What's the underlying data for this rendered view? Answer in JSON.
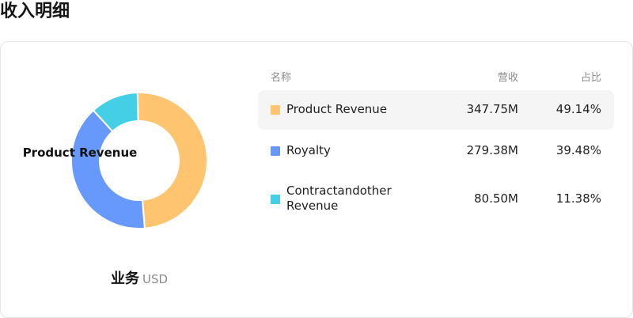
{
  "page": {
    "title": "收入明细"
  },
  "donut": {
    "center_label": "Product Revenue",
    "segment_colors": [
      "#fec46f",
      "#6699fb",
      "#45cfe6"
    ]
  },
  "chart_data": {
    "type": "pie",
    "title": "",
    "categories": [
      "Product Revenue",
      "Royalty",
      "Contractandother Revenue"
    ],
    "values": [
      347.75,
      279.38,
      80.5
    ],
    "percentages": [
      49.14,
      39.48,
      11.38
    ],
    "unit": "M",
    "style": "donut"
  },
  "footer": {
    "business_label": "业务",
    "currency": "USD"
  },
  "table": {
    "headers": {
      "name": "名称",
      "revenue": "营收",
      "percent": "占比"
    },
    "rows": [
      {
        "name": "Product Revenue",
        "revenue": "347.75M",
        "percent": "49.14%",
        "color": "#fec46f"
      },
      {
        "name": "Royalty",
        "revenue": "279.38M",
        "percent": "39.48%",
        "color": "#6699fb"
      },
      {
        "name": "Contractandother Revenue",
        "revenue": "80.50M",
        "percent": "11.38%",
        "color": "#45cfe6"
      }
    ]
  }
}
